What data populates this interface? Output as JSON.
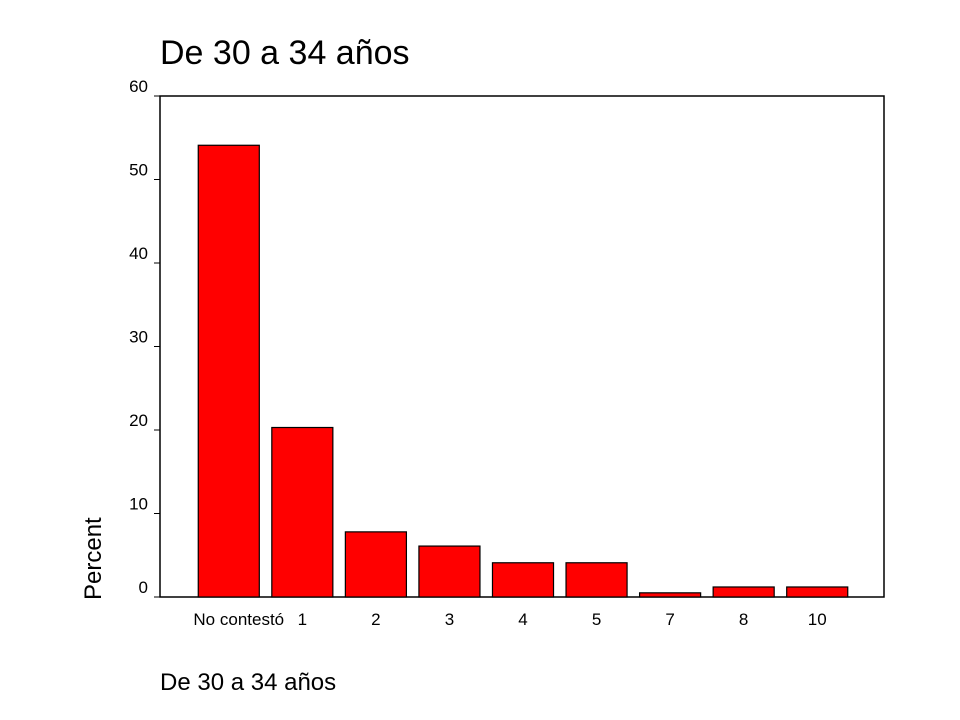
{
  "chart_data": {
    "type": "bar",
    "title": "De 30 a 34 años",
    "x_label": "De 30 a 34 años",
    "y_label": "Percent",
    "categories": [
      "No contestó",
      "1",
      "2",
      "3",
      "4",
      "5",
      "7",
      "8",
      "10"
    ],
    "values": [
      54.1,
      20.3,
      7.8,
      6.1,
      4.1,
      4.1,
      0.5,
      1.2,
      1.2
    ],
    "color": "#ff0000",
    "ylim": [
      0,
      60
    ],
    "yticks": [
      0,
      10,
      20,
      30,
      40,
      50,
      60
    ],
    "grid": false
  }
}
